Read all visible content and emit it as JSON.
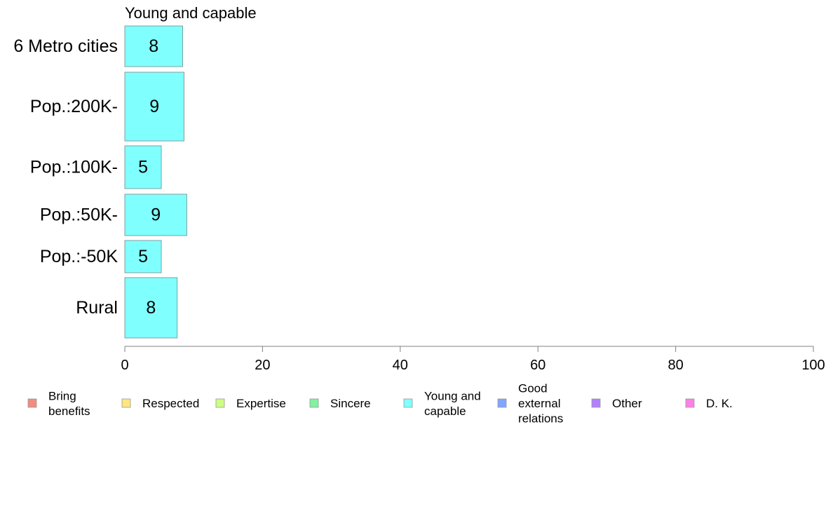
{
  "chart_data": {
    "type": "bar",
    "orientation": "horizontal",
    "title": "Young and capable",
    "categories": [
      "6 Metro cities",
      "Pop.:200K-",
      "Pop.:100K-",
      "Pop.:50K-",
      "Pop.:-50K",
      "Rural"
    ],
    "series": [
      {
        "name": "Young and capable",
        "color": "#80ffff",
        "values": [
          8.4,
          8.6,
          5.3,
          9.0,
          5.3,
          7.6
        ],
        "labels": [
          "8",
          "9",
          "5",
          "9",
          "5",
          "8"
        ]
      }
    ],
    "xlim": [
      0,
      100
    ],
    "xticks": [
      0,
      20,
      40,
      60,
      80,
      100
    ],
    "xtick_labels": [
      "0",
      "20",
      "40",
      "60",
      "80",
      "100"
    ],
    "grid": false,
    "legend_position": "bottom",
    "legend": [
      {
        "label": [
          "Bring",
          "benefits"
        ],
        "color": "#f28b82"
      },
      {
        "label": [
          "Respected"
        ],
        "color": "#ffe680"
      },
      {
        "label": [
          "Expertise"
        ],
        "color": "#ccff80"
      },
      {
        "label": [
          "Sincere"
        ],
        "color": "#80f2a0"
      },
      {
        "label": [
          "Young and",
          "capable"
        ],
        "color": "#80ffff"
      },
      {
        "label": [
          "Good",
          "external",
          "relations"
        ],
        "color": "#80a6ff"
      },
      {
        "label": [
          "Other"
        ],
        "color": "#b380ff"
      },
      {
        "label": [
          "D. K."
        ],
        "color": "#ff80e6"
      }
    ]
  }
}
